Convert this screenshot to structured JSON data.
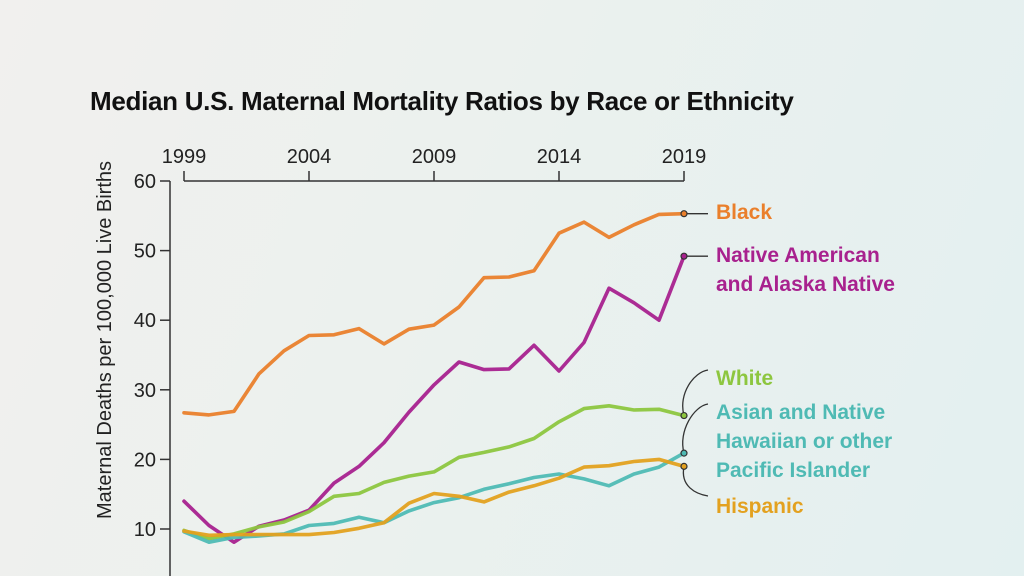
{
  "chart_data": {
    "type": "line",
    "title": "Median U.S. Maternal Mortality Ratios by Race or Ethnicity",
    "xlabel": "",
    "ylabel": "Maternal Deaths per 100,000 Live Births",
    "x": [
      1999,
      2000,
      2001,
      2002,
      2003,
      2004,
      2005,
      2006,
      2007,
      2008,
      2009,
      2010,
      2011,
      2012,
      2013,
      2014,
      2015,
      2016,
      2017,
      2018,
      2019
    ],
    "xlim": [
      1999,
      2019
    ],
    "ylim": [
      0,
      60
    ],
    "x_ticks": [
      1999,
      2004,
      2009,
      2014,
      2019
    ],
    "x_tick_labels": [
      "1999",
      "2004",
      "2009",
      "2014",
      "2019"
    ],
    "x_axis_position": "top",
    "y_ticks": [
      10,
      20,
      30,
      40,
      50,
      60
    ],
    "y_tick_labels": [
      "10",
      "20",
      "30",
      "40",
      "50",
      "60"
    ],
    "grid": false,
    "legend_placement": "right (direct labels at line ends)",
    "series": [
      {
        "name": "Black",
        "label_lines": [
          "Black"
        ],
        "color": "#ea7f2b",
        "values": [
          26.7,
          26.4,
          26.9,
          32.3,
          35.6,
          37.8,
          37.9,
          38.8,
          36.6,
          38.7,
          39.3,
          41.9,
          46.1,
          46.2,
          47.1,
          52.5,
          54.1,
          51.9,
          53.7,
          55.2,
          55.3
        ]
      },
      {
        "name": "Native American and Alaska Native",
        "label_lines": [
          "Native American",
          "and Alaska Native"
        ],
        "color": "#a8218e",
        "values": [
          14.0,
          10.5,
          8.1,
          10.4,
          11.3,
          12.7,
          16.6,
          19.0,
          22.4,
          26.8,
          30.7,
          34.0,
          32.9,
          33.0,
          36.4,
          32.7,
          36.8,
          44.6,
          42.5,
          40.0,
          49.2
        ]
      },
      {
        "name": "White",
        "label_lines": [
          "White"
        ],
        "color": "#8dc63f",
        "values": [
          9.8,
          8.6,
          9.3,
          10.3,
          11.0,
          12.5,
          14.7,
          15.1,
          16.7,
          17.6,
          18.2,
          20.3,
          21.0,
          21.8,
          23.0,
          25.4,
          27.3,
          27.7,
          27.1,
          27.2,
          26.3
        ]
      },
      {
        "name": "Asian and Native Hawaiian or other Pacific Islander",
        "label_lines": [
          "Asian and Native",
          "Hawaiian or other",
          "Pacific Islander"
        ],
        "color": "#4fbab4",
        "values": [
          9.6,
          8.1,
          8.8,
          9.0,
          9.3,
          10.5,
          10.8,
          11.7,
          10.9,
          12.6,
          13.8,
          14.5,
          15.7,
          16.5,
          17.4,
          17.9,
          17.2,
          16.2,
          17.9,
          18.9,
          20.9
        ]
      },
      {
        "name": "Hispanic",
        "label_lines": [
          "Hispanic"
        ],
        "color": "#e3a11f",
        "values": [
          9.7,
          9.1,
          9.2,
          9.2,
          9.2,
          9.2,
          9.5,
          10.1,
          10.9,
          13.7,
          15.1,
          14.7,
          13.9,
          15.3,
          16.2,
          17.3,
          18.9,
          19.1,
          19.7,
          20.0,
          19.0
        ]
      }
    ]
  }
}
